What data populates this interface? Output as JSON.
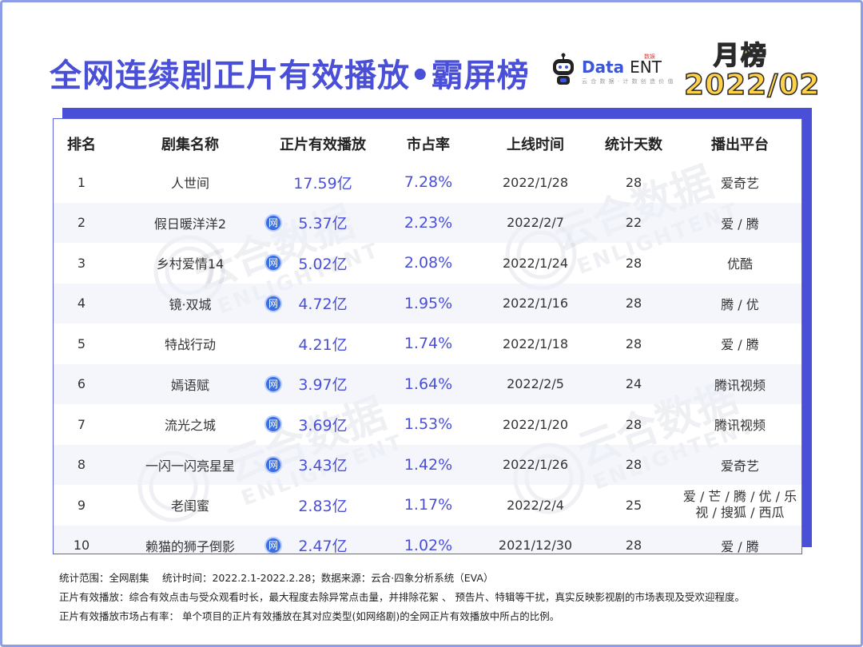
{
  "header": {
    "title": "全网连续剧正片有效播放•霸屏榜",
    "logo_text_a": "Data",
    "logo_text_b": "ENT",
    "logo_sub": "云 合 数 据 · 计 数 创 造 价 值",
    "logo_badge": "数娱",
    "badge_month": "月榜",
    "badge_date": "2022/02"
  },
  "table": {
    "headers": [
      "排名",
      "剧集名称",
      "正片有效播放",
      "市占率",
      "上线时间",
      "统计天数",
      "播出平台"
    ],
    "net_icon_label": "网",
    "rows": [
      {
        "rank": "1",
        "name": "人世间",
        "net": false,
        "plays": "17.59亿",
        "share": "7.28%",
        "date": "2022/1/28",
        "days": "28",
        "platform": "爱奇艺",
        "platform2": ""
      },
      {
        "rank": "2",
        "name": "假日暖洋洋2",
        "net": true,
        "plays": "5.37亿",
        "share": "2.23%",
        "date": "2022/2/7",
        "days": "22",
        "platform": "爱 / 腾",
        "platform2": ""
      },
      {
        "rank": "3",
        "name": "乡村爱情14",
        "net": true,
        "plays": "5.02亿",
        "share": "2.08%",
        "date": "2022/1/24",
        "days": "28",
        "platform": "优酷",
        "platform2": ""
      },
      {
        "rank": "4",
        "name": "镜·双城",
        "net": true,
        "plays": "4.72亿",
        "share": "1.95%",
        "date": "2022/1/16",
        "days": "28",
        "platform": "腾 / 优",
        "platform2": ""
      },
      {
        "rank": "5",
        "name": "特战行动",
        "net": false,
        "plays": "4.21亿",
        "share": "1.74%",
        "date": "2022/1/18",
        "days": "28",
        "platform": "爱 / 腾",
        "platform2": ""
      },
      {
        "rank": "6",
        "name": "嫣语赋",
        "net": true,
        "plays": "3.97亿",
        "share": "1.64%",
        "date": "2022/2/5",
        "days": "24",
        "platform": "腾讯视频",
        "platform2": ""
      },
      {
        "rank": "7",
        "name": "流光之城",
        "net": true,
        "plays": "3.69亿",
        "share": "1.53%",
        "date": "2022/1/20",
        "days": "28",
        "platform": "腾讯视频",
        "platform2": ""
      },
      {
        "rank": "8",
        "name": "一闪一闪亮星星",
        "net": true,
        "plays": "3.43亿",
        "share": "1.42%",
        "date": "2022/1/26",
        "days": "28",
        "platform": "爱奇艺",
        "platform2": ""
      },
      {
        "rank": "9",
        "name": "老闺蜜",
        "net": false,
        "plays": "2.83亿",
        "share": "1.17%",
        "date": "2022/2/4",
        "days": "25",
        "platform": "爱 / 芒 / 腾 / 优 / 乐",
        "platform2": "视 / 搜狐 / 西瓜"
      },
      {
        "rank": "10",
        "name": "赖猫的狮子倒影",
        "net": true,
        "plays": "2.47亿",
        "share": "1.02%",
        "date": "2021/12/30",
        "days": "28",
        "platform": "爱 / 腾",
        "platform2": ""
      }
    ]
  },
  "watermark": {
    "cn": "云合数据",
    "en": "ENLIGHTENT"
  },
  "notes": [
    "统计范围：全网剧集　 统计时间：2022.2.1-2022.2.28；数据来源：云合·四象分析系统（EVA）",
    "正片有效播放：综合有效点击与受众观看时长，最大程度去除异常点击量，并排除花絮 、 预告片、特辑等干扰，真实反映影视剧的市场表现及受欢迎程度。",
    "正片有效播放市场占有率： 单个项目的正片有效播放在其对应类型(如网络剧)的全网正片有效播放中所占的比例。"
  ]
}
